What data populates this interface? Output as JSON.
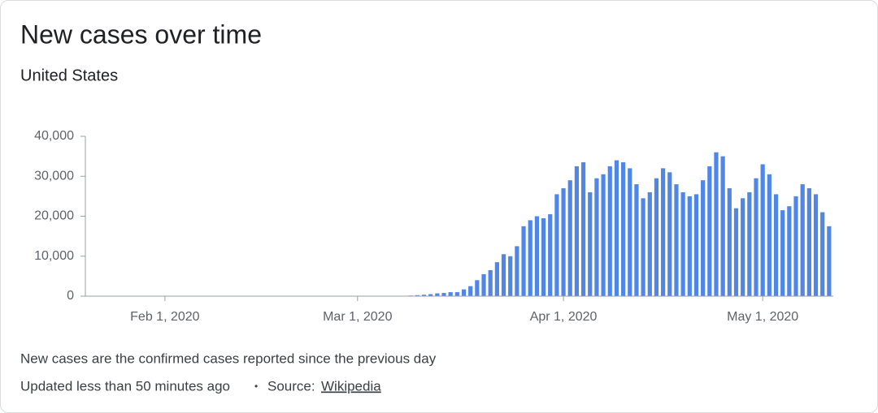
{
  "chart_data": {
    "type": "bar",
    "title": "New cases over time",
    "subtitle": "United States",
    "color": "#4f86e8",
    "ylim": [
      0,
      40000
    ],
    "yticks": [
      0,
      {
        "value": 10000,
        "label": "10,000"
      },
      {
        "value": 20000,
        "label": "20,000"
      },
      {
        "value": 30000,
        "label": "30,000"
      },
      {
        "value": 40000,
        "label": "40,000"
      }
    ],
    "categories": [
      null,
      null,
      null,
      null,
      null,
      null,
      null,
      null,
      null,
      null,
      null,
      "Feb 1, 2020",
      null,
      null,
      null,
      null,
      null,
      null,
      null,
      null,
      null,
      null,
      null,
      null,
      null,
      null,
      null,
      null,
      null,
      null,
      null,
      null,
      null,
      null,
      null,
      null,
      null,
      null,
      null,
      null,
      "Mar 1, 2020",
      null,
      null,
      null,
      null,
      null,
      null,
      null,
      null,
      null,
      null,
      null,
      null,
      null,
      null,
      null,
      null,
      null,
      null,
      null,
      null,
      null,
      null,
      null,
      null,
      null,
      null,
      null,
      null,
      null,
      null,
      "Apr 1, 2020",
      null,
      null,
      null,
      null,
      null,
      null,
      null,
      null,
      null,
      null,
      null,
      null,
      null,
      null,
      null,
      null,
      null,
      null,
      null,
      null,
      null,
      null,
      null,
      null,
      null,
      null,
      null,
      null,
      null,
      "May 1, 2020",
      null,
      null,
      null,
      null,
      null,
      null,
      null,
      null,
      null,
      null
    ],
    "values": [
      1,
      0,
      0,
      1,
      1,
      1,
      0,
      0,
      0,
      1,
      1,
      1,
      1,
      0,
      0,
      1,
      0,
      0,
      0,
      0,
      0,
      0,
      0,
      0,
      0,
      0,
      0,
      0,
      0,
      0,
      1,
      0,
      0,
      0,
      0,
      0,
      1,
      0,
      3,
      5,
      10,
      20,
      25,
      30,
      40,
      60,
      80,
      100,
      150,
      250,
      350,
      500,
      700,
      800,
      1000,
      1000,
      1700,
      2500,
      4000,
      5500,
      6500,
      8500,
      10500,
      10000,
      12500,
      17500,
      19000,
      20000,
      19500,
      20500,
      25500,
      27000,
      29000,
      32500,
      33500,
      26000,
      29500,
      30500,
      32500,
      34000,
      33500,
      32000,
      28000,
      24500,
      26000,
      29500,
      32000,
      31000,
      28000,
      26000,
      25000,
      25500,
      29000,
      32500,
      36000,
      35000,
      27000,
      22000,
      24500,
      26000,
      29500,
      33000,
      30500,
      25500,
      21500,
      22500,
      25000,
      28000,
      27000,
      25500,
      21000,
      17500
    ]
  },
  "footer": {
    "note": "New cases are the confirmed cases reported since the previous day",
    "updated": "Updated less than 50 minutes ago",
    "separator": "•",
    "source_label": "Source:",
    "source": "Wikipedia"
  }
}
